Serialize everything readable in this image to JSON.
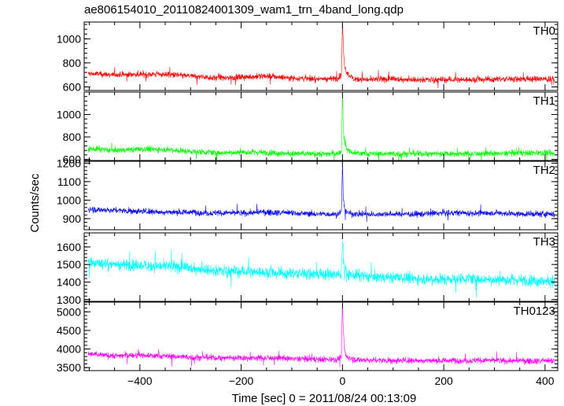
{
  "chart_data": {
    "type": "line",
    "title": "ae806154010_20110824001309_wam1_trn_4band_long.qdp",
    "ylabel": "Counts/sec",
    "xlabel": "Time [sec] 0 = 2011/08/24 00:13:09",
    "xlim": [
      -510,
      425
    ],
    "xticks": [
      -400,
      -200,
      0,
      200,
      400
    ],
    "grid": false,
    "panels": [
      {
        "name": "TH0",
        "color": "#ff0000",
        "ylim": [
          570,
          1140
        ],
        "yticks": [
          600,
          800,
          1000
        ],
        "x": [
          -500,
          -450,
          -400,
          -350,
          -300,
          -250,
          -200,
          -150,
          -100,
          -50,
          -10,
          -2,
          0,
          2,
          4,
          8,
          20,
          50,
          100,
          150,
          200,
          250,
          300,
          350,
          400,
          415
        ],
        "y": [
          710,
          700,
          705,
          705,
          690,
          675,
          680,
          690,
          675,
          665,
          670,
          700,
          1140,
          900,
          780,
          720,
          670,
          660,
          665,
          660,
          660,
          660,
          665,
          665,
          665,
          660
        ]
      },
      {
        "name": "TH1",
        "color": "#00ff00",
        "ylim": [
          590,
          1200
        ],
        "yticks": [
          600,
          800,
          1000
        ],
        "x": [
          -500,
          -450,
          -400,
          -350,
          -300,
          -250,
          -200,
          -150,
          -100,
          -50,
          -10,
          -2,
          0,
          2,
          4,
          8,
          20,
          50,
          100,
          150,
          200,
          250,
          300,
          350,
          400,
          415
        ],
        "y": [
          695,
          680,
          690,
          690,
          670,
          660,
          665,
          660,
          650,
          650,
          650,
          670,
          1190,
          850,
          750,
          690,
          660,
          650,
          650,
          650,
          650,
          650,
          650,
          660,
          660,
          650
        ]
      },
      {
        "name": "TH2",
        "color": "#0000ff",
        "ylim": [
          840,
          1210
        ],
        "yticks": [
          900,
          1000,
          1100,
          1200
        ],
        "x": [
          -500,
          -450,
          -400,
          -350,
          -300,
          -250,
          -200,
          -150,
          -100,
          -50,
          -10,
          -2,
          0,
          2,
          4,
          8,
          20,
          50,
          100,
          150,
          200,
          250,
          300,
          350,
          400,
          415
        ],
        "y": [
          950,
          945,
          940,
          935,
          935,
          930,
          930,
          935,
          930,
          925,
          925,
          940,
          1200,
          1000,
          950,
          935,
          925,
          925,
          925,
          925,
          930,
          930,
          930,
          925,
          925,
          925
        ]
      },
      {
        "name": "TH3",
        "color": "#00ffff",
        "ylim": [
          1290,
          1680
        ],
        "yticks": [
          1300,
          1400,
          1500,
          1600
        ],
        "x": [
          -500,
          -450,
          -400,
          -350,
          -300,
          -250,
          -200,
          -150,
          -100,
          -50,
          -10,
          -2,
          0,
          2,
          4,
          8,
          20,
          50,
          100,
          150,
          200,
          250,
          300,
          350,
          400,
          415
        ],
        "y": [
          1510,
          1500,
          1495,
          1490,
          1480,
          1465,
          1460,
          1455,
          1450,
          1445,
          1440,
          1450,
          1650,
          1520,
          1470,
          1450,
          1440,
          1430,
          1425,
          1420,
          1415,
          1420,
          1415,
          1410,
          1405,
          1405
        ]
      },
      {
        "name": "TH0123",
        "color": "#ff00ff",
        "ylim": [
          3420,
          5260
        ],
        "yticks": [
          3500,
          4000,
          4500,
          5000
        ],
        "x": [
          -500,
          -450,
          -400,
          -350,
          -300,
          -250,
          -200,
          -150,
          -100,
          -50,
          -10,
          -2,
          0,
          2,
          4,
          8,
          20,
          50,
          100,
          150,
          200,
          250,
          300,
          350,
          400,
          415
        ],
        "y": [
          3860,
          3820,
          3830,
          3810,
          3780,
          3760,
          3760,
          3760,
          3740,
          3730,
          3720,
          3800,
          5250,
          4400,
          3950,
          3800,
          3720,
          3700,
          3690,
          3690,
          3690,
          3690,
          3690,
          3680,
          3680,
          3670
        ]
      }
    ]
  }
}
